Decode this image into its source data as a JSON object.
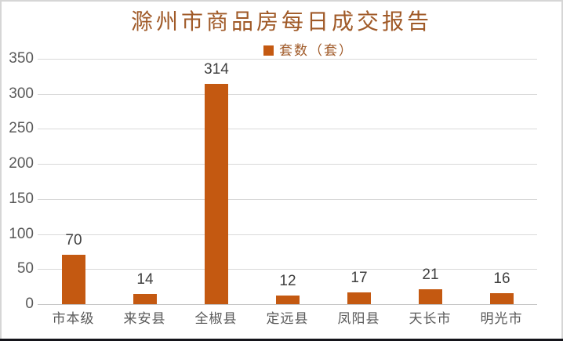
{
  "window": {
    "background": "#FFFFFF",
    "border_color": "#D6D6D6",
    "bottom_edge_color": "#14141A"
  },
  "chart_data": {
    "type": "bar",
    "title": "滁州市商品房每日成交报告",
    "legend": {
      "label": "套数（套）",
      "position": "top",
      "marker_color": "#C45911"
    },
    "categories": [
      "市本级",
      "来安县",
      "全椒县",
      "定远县",
      "凤阳县",
      "天长市",
      "明光市"
    ],
    "series": [
      {
        "name": "套数（套）",
        "values": [
          70,
          14,
          314,
          12,
          17,
          21,
          16
        ]
      }
    ],
    "value_labels_shown": true,
    "xlabel": "",
    "ylabel": "",
    "ylim": [
      0,
      350
    ],
    "yticks": [
      0,
      50,
      100,
      150,
      200,
      250,
      300,
      350
    ],
    "grid": true,
    "colors": {
      "bar": "#C45911",
      "title_text": "#A05A28",
      "legend_text": "#A05A28",
      "axis_label": "#595959",
      "value_label": "#404040",
      "gridline": "#D9D9D9",
      "axis_line": "#C4C4C4"
    }
  }
}
